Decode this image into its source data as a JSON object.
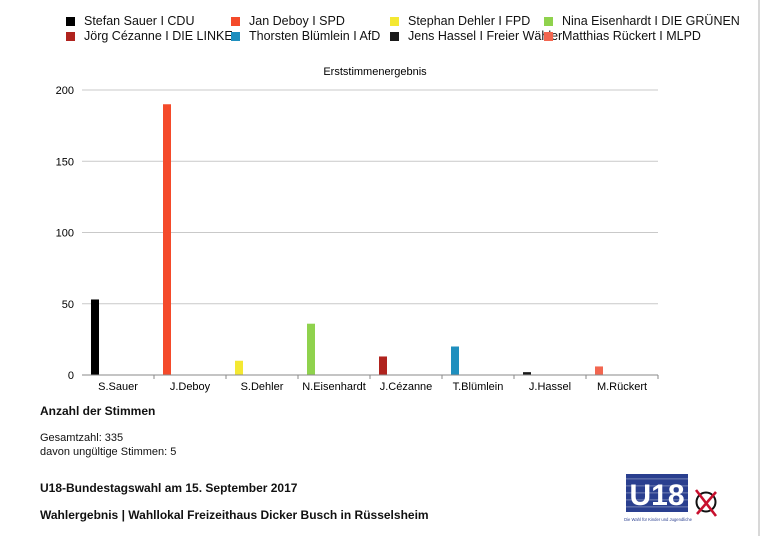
{
  "chart_data": {
    "type": "bar",
    "title": "Erststimmenergebnis",
    "categories": [
      "S.Sauer",
      "J.Deboy",
      "S.Dehler",
      "N.Eisenhardt",
      "J.Cézanne",
      "T.Blümlein",
      "J.Hassel",
      "M.Rückert"
    ],
    "values": [
      53,
      190,
      10,
      36,
      13,
      20,
      2,
      6
    ],
    "colors": [
      "#000000",
      "#f44a2a",
      "#f4e832",
      "#8fd24d",
      "#b0231e",
      "#1f8fbe",
      "#1a1a1a",
      "#f26650"
    ],
    "yticks": [
      0,
      50,
      100,
      150,
      200
    ],
    "ylim": [
      0,
      200
    ],
    "grid": true,
    "legend_position": "top",
    "legend": [
      {
        "label": "Stefan Sauer I CDU",
        "color": "#000000"
      },
      {
        "label": "Jan Deboy I SPD",
        "color": "#f44a2a"
      },
      {
        "label": "Stephan Dehler I FPD",
        "color": "#f4e832"
      },
      {
        "label": "Nina Eisenhardt I DIE GRÜNEN",
        "color": "#8fd24d"
      },
      {
        "label": "Jörg Cézanne I DIE LINKE",
        "color": "#b0231e"
      },
      {
        "label": "Thorsten Blümlein I AfD",
        "color": "#1f8fbe"
      },
      {
        "label": "Jens Hassel I Freier Wähler",
        "color": "#1a1a1a"
      },
      {
        "label": "Matthias Rückert I MLPD",
        "color": "#f26650"
      }
    ]
  },
  "summary": {
    "heading": "Anzahl der Stimmen",
    "total": "Gesamtzahl: 335",
    "invalid": "davon ungültige Stimmen: 5"
  },
  "footer": {
    "election": "U18-Bundestagswahl am 15. September 2017",
    "location": "Wahlergebnis | Wahllokal Freizeithaus Dicker Busch in Rüsselsheim"
  },
  "logo": {
    "text": "U18",
    "tagline": "Die Wahl für Kinder und Jugendliche",
    "colors": {
      "box": "#2a3f8f",
      "accent": "#c8102e"
    }
  }
}
